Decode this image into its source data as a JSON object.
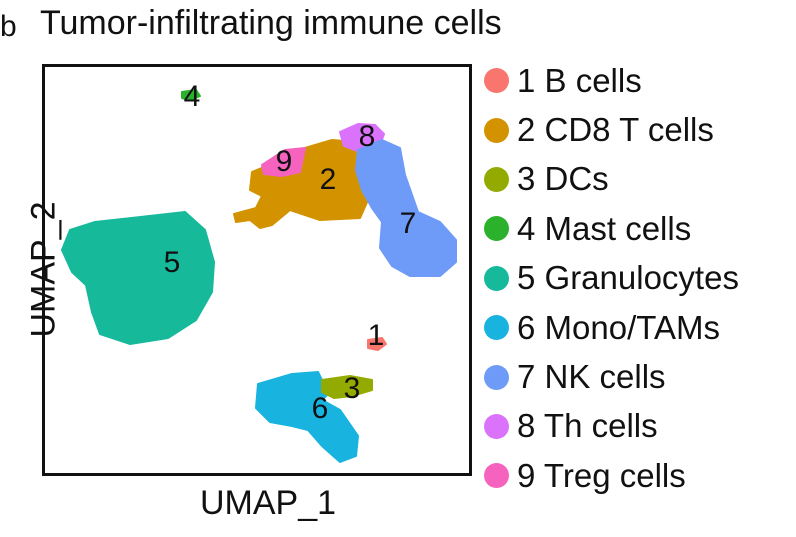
{
  "figure": {
    "title": "Tumor-infiltrating immune cells",
    "panel_letter_fragment": "b"
  },
  "colors": {
    "1": "#f8766d",
    "2": "#d39200",
    "3": "#93aa00",
    "4": "#2bb12b",
    "5": "#17b99b",
    "6": "#19b3e0",
    "7": "#6e9bf8",
    "8": "#db72fb",
    "9": "#f563bf"
  },
  "chart_data": {
    "type": "scatter",
    "title": "Tumor-infiltrating immune cells",
    "xlabel": "UMAP_1",
    "ylabel": "UMAP_2",
    "grid": false,
    "legend_position": "right",
    "clusters": [
      {
        "id": "1",
        "name": "1 B cells"
      },
      {
        "id": "2",
        "name": "2 CD8 T cells"
      },
      {
        "id": "3",
        "name": "3 DCs"
      },
      {
        "id": "4",
        "name": "4 Mast cells"
      },
      {
        "id": "5",
        "name": "5 Granulocytes"
      },
      {
        "id": "6",
        "name": "6 Mono/TAMs"
      },
      {
        "id": "7",
        "name": "7 NK cells"
      },
      {
        "id": "8",
        "name": "8 Th cells"
      },
      {
        "id": "9",
        "name": "9 Treg cells"
      }
    ],
    "cluster_labels": [
      "1",
      "2",
      "3",
      "4",
      "5",
      "6",
      "7",
      "8",
      "9"
    ]
  }
}
